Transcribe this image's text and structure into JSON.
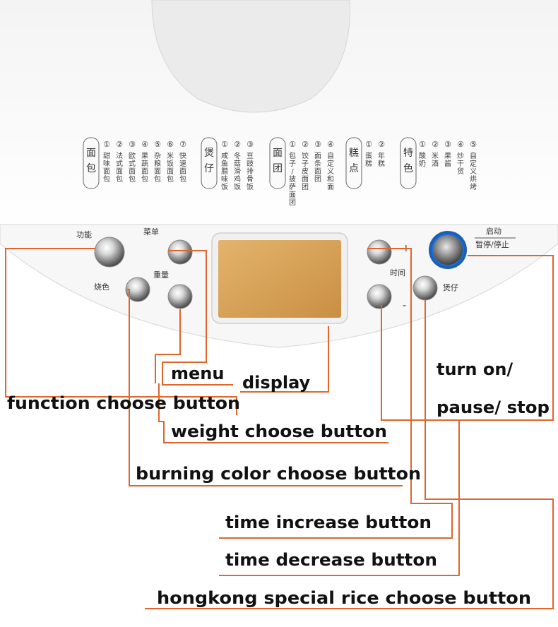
{
  "panel": {
    "menu_groups": [
      {
        "title": "面包",
        "items": [
          {
            "num": "①",
            "label": "甜味面包"
          },
          {
            "num": "②",
            "label": "法式面包"
          },
          {
            "num": "③",
            "label": "欧式面包"
          },
          {
            "num": "④",
            "label": "果蔬面包"
          },
          {
            "num": "⑤",
            "label": "杂粮面包"
          },
          {
            "num": "⑥",
            "label": "米饭面包"
          },
          {
            "num": "⑦",
            "label": "快速面包"
          }
        ]
      },
      {
        "title": "煲仔",
        "items": [
          {
            "num": "①",
            "label": "咸鱼腊味饭"
          },
          {
            "num": "②",
            "label": "冬菇滑鸡饭"
          },
          {
            "num": "③",
            "label": "豆豉排骨饭"
          }
        ]
      },
      {
        "title": "面团",
        "items": [
          {
            "num": "①",
            "label": "包子/披萨面团"
          },
          {
            "num": "②",
            "label": "饺子皮面团"
          },
          {
            "num": "③",
            "label": "面条面团"
          },
          {
            "num": "④",
            "label": "自定义和面"
          }
        ]
      },
      {
        "title": "糕点",
        "items": [
          {
            "num": "①",
            "label": "蛋糕"
          },
          {
            "num": "②",
            "label": "年糕"
          }
        ]
      },
      {
        "title": "特色",
        "items": [
          {
            "num": "①",
            "label": "酸奶"
          },
          {
            "num": "②",
            "label": "米酒"
          },
          {
            "num": "③",
            "label": "果酱"
          },
          {
            "num": "④",
            "label": "炒干货"
          },
          {
            "num": "⑤",
            "label": "自定义烘烤"
          }
        ]
      }
    ],
    "button_labels": {
      "function": "功能",
      "menu": "菜单",
      "color": "烧色",
      "weight": "重量",
      "time": "时间",
      "plus": "+",
      "minus": "-",
      "start": "启动",
      "pause_stop": "暂停/停止",
      "claypot": "煲仔"
    }
  },
  "annotations": {
    "menu": "menu",
    "display": "display",
    "function": "function choose button",
    "turn_on_1": "turn on/",
    "turn_on_2": "pause/ stop",
    "weight": "weight choose button",
    "burning": "burning color choose button",
    "time_increase": "time increase button",
    "time_decrease": "time decrease button",
    "hongkong": "hongkong special rice choose button"
  },
  "colors": {
    "leader_line": "#e0662b",
    "display_screen": "#d9a25a",
    "start_ring": "#1e6fd0"
  }
}
